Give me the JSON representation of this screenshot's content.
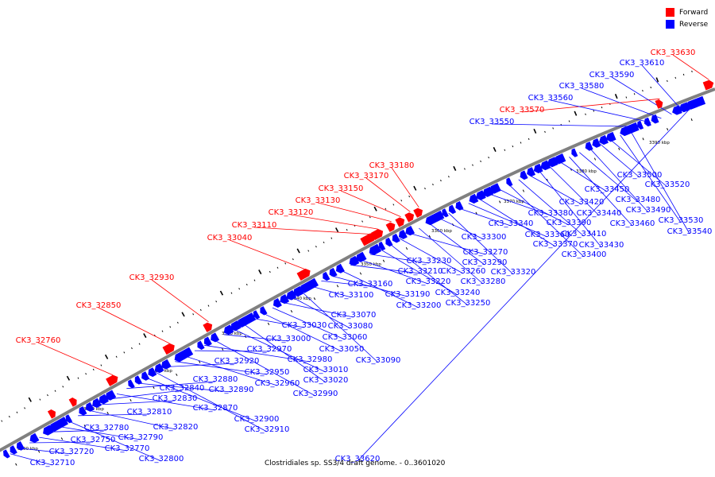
{
  "legend": {
    "forward": {
      "label": "Forward",
      "color": "#ff0000"
    },
    "reverse": {
      "label": "Reverse",
      "color": "#0000ff"
    }
  },
  "caption": "Clostridiales sp. SS3/4 draft genome. - 0..3601020",
  "scale_labels": [
    "3300 kbp",
    "3310 kbp",
    "3320 kbp",
    "3330 kbp",
    "3340 kbp",
    "3350 kbp",
    "3360 kbp",
    "3370 kbp",
    "3380 kbp",
    "3390 kbp"
  ],
  "forward_genes": [
    "CK3_32760",
    "CK3_32850",
    "CK3_32930",
    "CK3_33040",
    "CK3_33110",
    "CK3_33120",
    "CK3_33130",
    "CK3_33150",
    "CK3_33170",
    "CK3_33180",
    "CK3_33570",
    "CK3_33630"
  ],
  "reverse_genes": [
    "CK3_32710",
    "CK3_32720",
    "CK3_32750",
    "CK3_32770",
    "CK3_32780",
    "CK3_32790",
    "CK3_32800",
    "CK3_32810",
    "CK3_32820",
    "CK3_32830",
    "CK3_32840",
    "CK3_32870",
    "CK3_32880",
    "CK3_32890",
    "CK3_32900",
    "CK3_32910",
    "CK3_32920",
    "CK3_32950",
    "CK3_32960",
    "CK3_32970",
    "CK3_32980",
    "CK3_32990",
    "CK3_33000",
    "CK3_33010",
    "CK3_33020",
    "CK3_33030",
    "CK3_33050",
    "CK3_33060",
    "CK3_33070",
    "CK3_33080",
    "CK3_33090",
    "CK3_33100",
    "CK3_33160",
    "CK3_33190",
    "CK3_33200",
    "CK3_33210",
    "CK3_33220",
    "CK3_33230",
    "CK3_33240",
    "CK3_33250",
    "CK3_33260",
    "CK3_33270",
    "CK3_33280",
    "CK3_33290",
    "CK3_33300",
    "CK3_33320",
    "CK3_33340",
    "CK3_33360",
    "CK3_33370",
    "CK3_33380",
    "CK3_33390",
    "CK3_33400",
    "CK3_33410",
    "CK3_33420",
    "CK3_33430",
    "CK3_33440",
    "CK3_33450",
    "CK3_33460",
    "CK3_33480",
    "CK3_33490",
    "CK3_33500",
    "CK3_33520",
    "CK3_33530",
    "CK3_33540",
    "CK3_33550",
    "CK3_33560",
    "CK3_33580",
    "CK3_33590",
    "CK3_33610",
    "CK3_33620"
  ]
}
